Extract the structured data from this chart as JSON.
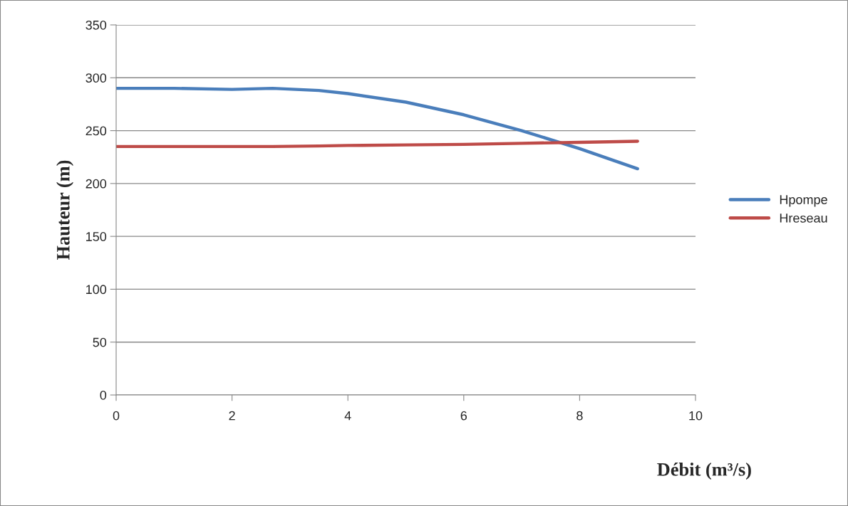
{
  "chart_data": {
    "type": "line",
    "xlabel": "Débit (m³/s)",
    "ylabel": "Hauteur (m)",
    "x": [
      0,
      1,
      2,
      2.7,
      3.5,
      4,
      5,
      6,
      7,
      8,
      9
    ],
    "series": [
      {
        "name": "Hpompe",
        "color": "#4a7ebb",
        "values": [
          290,
          290,
          289,
          290,
          288,
          285,
          277,
          265,
          250,
          233,
          214
        ]
      },
      {
        "name": "Hreseau",
        "color": "#be4b48",
        "values": [
          235,
          235,
          235,
          235,
          235.5,
          236,
          236.5,
          237,
          238,
          239,
          240
        ]
      }
    ],
    "xlim": [
      0,
      10
    ],
    "xticks": [
      0,
      2,
      4,
      6,
      8,
      10
    ],
    "ylim": [
      0,
      350
    ],
    "yticks": [
      0,
      50,
      100,
      150,
      200,
      250,
      300,
      350
    ],
    "grid": "y",
    "legend": "right",
    "marker": "none",
    "line_style": "solid"
  }
}
